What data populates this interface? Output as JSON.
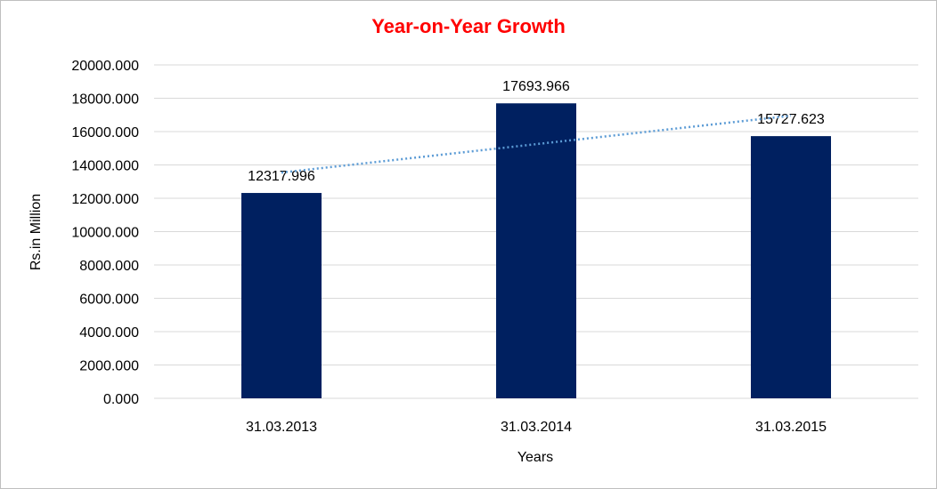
{
  "chart_data": {
    "type": "bar",
    "title": "Year-on-Year Growth",
    "xlabel": "Years",
    "ylabel": "Rs.in Million",
    "categories": [
      "31.03.2013",
      "31.03.2014",
      "31.03.2015"
    ],
    "values": [
      12317.996,
      17693.966,
      15727.623
    ],
    "value_labels": [
      "12317.996",
      "17693.966",
      "15727.623"
    ],
    "ylim": [
      0,
      20000
    ],
    "yticks": [
      "0.000",
      "2000.000",
      "4000.000",
      "6000.000",
      "8000.000",
      "10000.000",
      "12000.000",
      "14000.000",
      "16000.000",
      "18000.000",
      "20000.000"
    ],
    "grid": true,
    "legend": "none",
    "trendline": "linear (dotted)",
    "colors": {
      "bar": "#002060",
      "trendline": "#5b9bd5",
      "title": "#ff0000",
      "grid": "#d9d9d9"
    }
  }
}
